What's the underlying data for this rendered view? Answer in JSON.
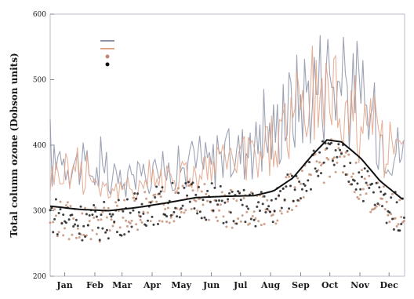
{
  "chart_data": {
    "type": "line",
    "title": "",
    "xlabel": "",
    "ylabel": "Total column ozone (Dobson units)",
    "ylim": [
      200,
      600
    ],
    "yticks": [
      200,
      300,
      400,
      500,
      600
    ],
    "ytick_labels": [
      "200",
      "300",
      "400",
      "500",
      "600"
    ],
    "xlim": [
      0,
      365
    ],
    "xticks": [
      {
        "label": "Jan",
        "day": 15
      },
      {
        "label": "Feb",
        "day": 46
      },
      {
        "label": "Mar",
        "day": 74
      },
      {
        "label": "Apr",
        "day": 105
      },
      {
        "label": "May",
        "day": 135
      },
      {
        "label": "Jun",
        "day": 166
      },
      {
        "label": "Jul",
        "day": 196
      },
      {
        "label": "Aug",
        "day": 227
      },
      {
        "label": "Sep",
        "day": 258
      },
      {
        "label": "Oct",
        "day": 288
      },
      {
        "label": "Nov",
        "day": 319
      },
      {
        "label": "Dec",
        "day": 349
      }
    ],
    "grid": false,
    "legend_position": "top-left",
    "series": [
      {
        "name": "",
        "style": "spiky-line",
        "color": "#8c93a8",
        "x": [
          0,
          15,
          30,
          46,
          60,
          74,
          90,
          105,
          120,
          135,
          150,
          166,
          180,
          196,
          212,
          227,
          240,
          258,
          272,
          288,
          300,
          319,
          334,
          349,
          365
        ],
        "values": [
          370,
          385,
          375,
          360,
          345,
          340,
          355,
          360,
          365,
          370,
          372,
          378,
          385,
          395,
          405,
          420,
          450,
          485,
          505,
          520,
          495,
          470,
          440,
          410,
          390
        ]
      },
      {
        "name": "",
        "style": "spiky-line",
        "color": "#e2a48a",
        "x": [
          0,
          15,
          30,
          46,
          60,
          74,
          90,
          105,
          120,
          135,
          150,
          166,
          180,
          196,
          212,
          227,
          240,
          258,
          272,
          288,
          300,
          319,
          334,
          349,
          365
        ],
        "values": [
          355,
          368,
          360,
          350,
          335,
          330,
          342,
          348,
          352,
          358,
          360,
          365,
          372,
          380,
          390,
          405,
          430,
          460,
          480,
          492,
          475,
          450,
          425,
          400,
          380
        ]
      },
      {
        "name": "",
        "style": "dots",
        "color": "#c08a70",
        "x": [
          0,
          15,
          30,
          46,
          60,
          74,
          90,
          105,
          120,
          135,
          150,
          166,
          180,
          196,
          212,
          227,
          240,
          258,
          272,
          288,
          300,
          319,
          334,
          349,
          365
        ],
        "values": [
          290,
          285,
          282,
          280,
          285,
          290,
          298,
          305,
          310,
          315,
          316,
          312,
          305,
          300,
          298,
          300,
          318,
          340,
          360,
          380,
          370,
          345,
          320,
          300,
          290
        ]
      },
      {
        "name": "",
        "style": "dots",
        "color": "#111111",
        "x": [
          0,
          15,
          30,
          46,
          60,
          74,
          90,
          105,
          120,
          135,
          150,
          166,
          180,
          196,
          212,
          227,
          240,
          258,
          272,
          288,
          300,
          319,
          334,
          349,
          365
        ],
        "values": [
          295,
          290,
          285,
          282,
          286,
          292,
          300,
          308,
          312,
          318,
          318,
          315,
          308,
          304,
          302,
          305,
          322,
          345,
          368,
          385,
          375,
          350,
          325,
          305,
          292
        ]
      },
      {
        "name": "",
        "style": "smooth-line",
        "color": "#111111",
        "x": [
          0,
          30,
          60,
          90,
          120,
          150,
          180,
          210,
          230,
          250,
          270,
          285,
          300,
          320,
          340,
          365
        ],
        "values": [
          307,
          302,
          300,
          305,
          312,
          320,
          322,
          323,
          330,
          350,
          385,
          408,
          405,
          380,
          345,
          315
        ]
      }
    ],
    "legend": [
      "",
      "",
      "",
      ""
    ]
  }
}
